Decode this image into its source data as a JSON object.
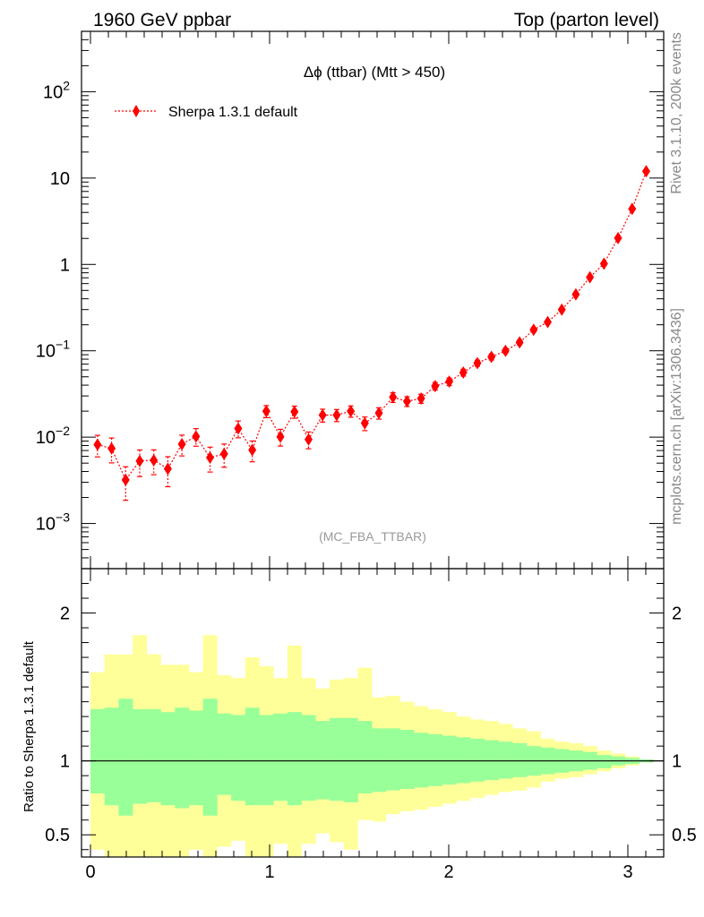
{
  "header": {
    "left": "1960 GeV ppbar",
    "right": "Top (parton level)"
  },
  "side_labels": {
    "rivet": "Rivet 3.1.10,  200k events",
    "mcplots": "mcplots.cern.ch [arXiv:1306.3436]"
  },
  "colors": {
    "series": "#ff0000",
    "band_inner": "#99ff99",
    "band_outer": "#ffff99",
    "analysis_label": "#999999"
  },
  "chart_data": [
    {
      "type": "scatter",
      "title": "Δϕ (ttbar) (Mtt > 450)",
      "annotation": "(MC_FBA_TTBAR)",
      "xlim": [
        -0.05,
        3.2
      ],
      "ylim": [
        0.0003,
        500
      ],
      "yscale": "log",
      "y_tick_labels": [
        "10^-3",
        "10^-2",
        "10^-1",
        "1",
        "10",
        "10^2"
      ],
      "legend": {
        "position": "top-left",
        "entries": [
          "Sherpa 1.3.1 default"
        ]
      },
      "series": [
        {
          "name": "Sherpa 1.3.1 default",
          "marker": "diamond",
          "line": "dotted",
          "x": [
            0.0393,
            0.1178,
            0.1963,
            0.2749,
            0.3534,
            0.432,
            0.5105,
            0.589,
            0.6676,
            0.7461,
            0.8247,
            0.9032,
            0.9817,
            1.0603,
            1.1388,
            1.2174,
            1.2959,
            1.3744,
            1.453,
            1.5315,
            1.6101,
            1.6886,
            1.7671,
            1.8457,
            1.9242,
            2.0028,
            2.0813,
            2.1598,
            2.2384,
            2.3169,
            2.3955,
            2.474,
            2.5525,
            2.6311,
            2.7096,
            2.7882,
            2.8667,
            2.9452,
            3.0238,
            3.1023
          ],
          "y": [
            0.0082,
            0.0074,
            0.0032,
            0.0053,
            0.0054,
            0.0043,
            0.0083,
            0.0102,
            0.0058,
            0.0064,
            0.0126,
            0.0071,
            0.02,
            0.0101,
            0.0197,
            0.0094,
            0.018,
            0.018,
            0.02,
            0.0145,
            0.019,
            0.029,
            0.026,
            0.028,
            0.039,
            0.044,
            0.056,
            0.072,
            0.085,
            0.1,
            0.125,
            0.175,
            0.215,
            0.3,
            0.45,
            0.71,
            1.02,
            2.02,
            4.4,
            12.0
          ],
          "yerr_rel": [
            0.28,
            0.32,
            0.42,
            0.34,
            0.32,
            0.38,
            0.27,
            0.23,
            0.32,
            0.3,
            0.22,
            0.27,
            0.16,
            0.22,
            0.16,
            0.22,
            0.17,
            0.16,
            0.15,
            0.18,
            0.15,
            0.13,
            0.13,
            0.12,
            0.1,
            0.1,
            0.09,
            0.08,
            0.08,
            0.07,
            0.06,
            0.06,
            0.05,
            0.045,
            0.04,
            0.035,
            0.03,
            0.025,
            0.02,
            0.015
          ]
        }
      ]
    },
    {
      "type": "area",
      "ylabel": "Ratio to Sherpa 1.3.1 default",
      "xlim": [
        -0.05,
        3.2
      ],
      "ylim": [
        0.35,
        2.3
      ],
      "x_ticks": [
        0,
        1,
        2,
        3
      ],
      "y_ticks": [
        0.5,
        1,
        2
      ],
      "reference_line": 1,
      "bin_edges": [
        0.0,
        0.0785,
        0.1571,
        0.2356,
        0.3142,
        0.3927,
        0.4712,
        0.5498,
        0.6283,
        0.7069,
        0.7854,
        0.8639,
        0.9425,
        1.021,
        1.0996,
        1.1781,
        1.2566,
        1.3352,
        1.4137,
        1.4923,
        1.5708,
        1.6493,
        1.7279,
        1.8064,
        1.885,
        1.9635,
        2.042,
        2.1206,
        2.1991,
        2.2777,
        2.3562,
        2.4347,
        2.5133,
        2.5918,
        2.6704,
        2.7489,
        2.8274,
        2.906,
        2.9845,
        3.0631,
        3.1416
      ],
      "band_outer_upper": [
        1.6,
        1.72,
        1.72,
        1.85,
        1.72,
        1.65,
        1.65,
        1.6,
        1.85,
        1.58,
        1.56,
        1.7,
        1.64,
        1.56,
        1.78,
        1.56,
        1.49,
        1.55,
        1.56,
        1.63,
        1.43,
        1.44,
        1.4,
        1.37,
        1.35,
        1.33,
        1.3,
        1.28,
        1.27,
        1.25,
        1.22,
        1.2,
        1.15,
        1.13,
        1.12,
        1.1,
        1.07,
        1.05,
        1.03,
        1.01
      ],
      "band_outer_lower": [
        0.4,
        0.3,
        0.1,
        0.28,
        0.3,
        0.35,
        0.35,
        0.4,
        0.3,
        0.42,
        0.46,
        0.3,
        0.3,
        0.44,
        0.3,
        0.44,
        0.51,
        0.45,
        0.4,
        0.6,
        0.59,
        0.64,
        0.66,
        0.67,
        0.69,
        0.71,
        0.73,
        0.75,
        0.77,
        0.79,
        0.8,
        0.82,
        0.86,
        0.88,
        0.89,
        0.91,
        0.93,
        0.95,
        0.97,
        0.99
      ],
      "band_inner_upper": [
        1.35,
        1.36,
        1.42,
        1.35,
        1.35,
        1.33,
        1.36,
        1.34,
        1.42,
        1.32,
        1.31,
        1.36,
        1.31,
        1.32,
        1.33,
        1.31,
        1.27,
        1.29,
        1.29,
        1.27,
        1.22,
        1.22,
        1.21,
        1.19,
        1.18,
        1.17,
        1.16,
        1.15,
        1.14,
        1.13,
        1.12,
        1.1,
        1.09,
        1.08,
        1.07,
        1.06,
        1.04,
        1.03,
        1.02,
        1.01
      ],
      "band_inner_lower": [
        0.78,
        0.7,
        0.63,
        0.71,
        0.72,
        0.7,
        0.68,
        0.7,
        0.63,
        0.77,
        0.73,
        0.7,
        0.7,
        0.73,
        0.7,
        0.73,
        0.74,
        0.73,
        0.72,
        0.78,
        0.79,
        0.8,
        0.81,
        0.82,
        0.83,
        0.84,
        0.85,
        0.86,
        0.87,
        0.88,
        0.89,
        0.9,
        0.91,
        0.92,
        0.93,
        0.94,
        0.95,
        0.97,
        0.98,
        0.99
      ]
    }
  ]
}
